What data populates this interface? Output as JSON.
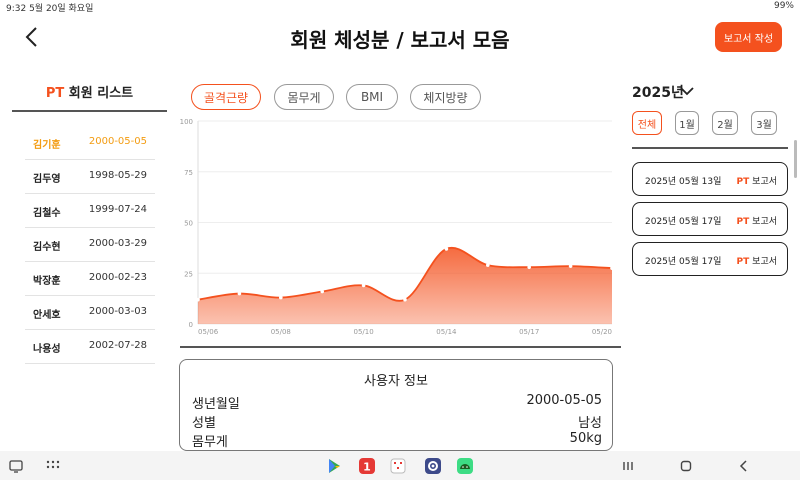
{
  "status": {
    "left": "9:32  5월 20일 화요일",
    "right": "99%"
  },
  "header": {
    "title": "회원 체성분 / 보고서 모음",
    "write_button": "보고서 작성"
  },
  "members": {
    "title_pt": "PT",
    "title_rest": " 회원 리스트",
    "rows": [
      {
        "name": "김기훈",
        "date": "2000-05-05"
      },
      {
        "name": "김두영",
        "date": "1998-05-29"
      },
      {
        "name": "김철수",
        "date": "1999-07-24"
      },
      {
        "name": "김수현",
        "date": "2000-03-29"
      },
      {
        "name": "박장훈",
        "date": "2000-02-23"
      },
      {
        "name": "안세호",
        "date": "2000-03-03"
      },
      {
        "name": "나용성",
        "date": "2002-07-28"
      }
    ]
  },
  "tabs": [
    "골격근량",
    "몸무게",
    "BMI",
    "체지방량"
  ],
  "chart_data": {
    "type": "area",
    "x_ticks": [
      "05/06",
      "05/08",
      "05/10",
      "05/14",
      "05/17",
      "05/20"
    ],
    "y_ticks": [
      "0",
      "25",
      "50",
      "75",
      "100"
    ],
    "ylim": [
      0,
      100
    ],
    "values": [
      12,
      15,
      13,
      16,
      19,
      12,
      37,
      29,
      28,
      28.5,
      27.5
    ],
    "color": "#f4511e"
  },
  "user_info": {
    "title": "사용자 정보",
    "rows": [
      {
        "k": "생년월일",
        "v": "2000-05-05"
      },
      {
        "k": "성별",
        "v": "남성"
      },
      {
        "k": "몸무게",
        "v": "50kg"
      }
    ]
  },
  "reports_panel": {
    "year": "2025년",
    "months": [
      "전체",
      "1월",
      "2월",
      "3월"
    ],
    "reports": [
      {
        "date": "2025년 05월 13일",
        "pt": "PT",
        "type": " 보고서"
      },
      {
        "date": "2025년 05월 17일",
        "pt": "PT",
        "type": " 보고서"
      },
      {
        "date": "2025년 05월 17일",
        "pt": "PT",
        "type": " 보고서"
      }
    ]
  }
}
